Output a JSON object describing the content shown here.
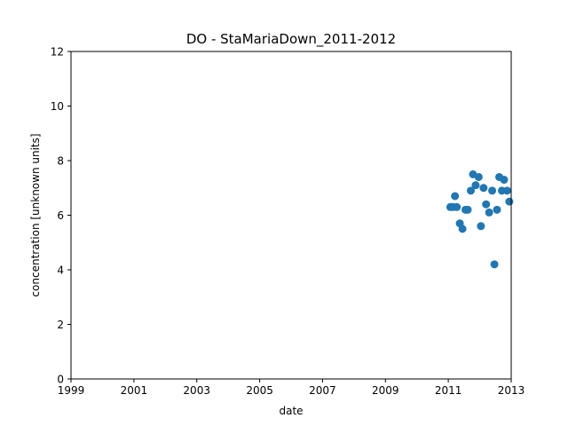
{
  "chart_data": {
    "type": "scatter",
    "title": "DO - StaMariaDown_2011-2012",
    "xlabel": "date",
    "ylabel": "concentration [unknown units]",
    "xlim": [
      "1999-01-01",
      "2013-01-01"
    ],
    "ylim": [
      0,
      12
    ],
    "xticks": [
      "1999",
      "2001",
      "2003",
      "2005",
      "2007",
      "2009",
      "2011",
      "2013"
    ],
    "yticks": [
      "0",
      "2",
      "4",
      "6",
      "8",
      "10",
      "12"
    ],
    "grid": false,
    "legend": "none",
    "marker_color": "#1f77b4",
    "series": [
      {
        "points": [
          {
            "x": "2011-01-25",
            "y": 6.3
          },
          {
            "x": "2011-02-25",
            "y": 6.3
          },
          {
            "x": "2011-03-20",
            "y": 6.7
          },
          {
            "x": "2011-04-10",
            "y": 6.3
          },
          {
            "x": "2011-05-15",
            "y": 5.7
          },
          {
            "x": "2011-06-15",
            "y": 5.5
          },
          {
            "x": "2011-07-20",
            "y": 6.2
          },
          {
            "x": "2011-08-15",
            "y": 6.2
          },
          {
            "x": "2011-09-20",
            "y": 6.9
          },
          {
            "x": "2011-10-15",
            "y": 7.5
          },
          {
            "x": "2011-11-15",
            "y": 7.1
          },
          {
            "x": "2011-12-20",
            "y": 7.4
          },
          {
            "x": "2012-01-15",
            "y": 5.6
          },
          {
            "x": "2012-02-15",
            "y": 7.0
          },
          {
            "x": "2012-03-15",
            "y": 6.4
          },
          {
            "x": "2012-04-20",
            "y": 6.1
          },
          {
            "x": "2012-05-25",
            "y": 6.9
          },
          {
            "x": "2012-06-20",
            "y": 4.2
          },
          {
            "x": "2012-07-20",
            "y": 6.2
          },
          {
            "x": "2012-08-15",
            "y": 7.4
          },
          {
            "x": "2012-09-15",
            "y": 6.9
          },
          {
            "x": "2012-10-10",
            "y": 7.3
          },
          {
            "x": "2012-11-15",
            "y": 6.9
          },
          {
            "x": "2012-12-10",
            "y": 6.5
          }
        ]
      }
    ]
  }
}
